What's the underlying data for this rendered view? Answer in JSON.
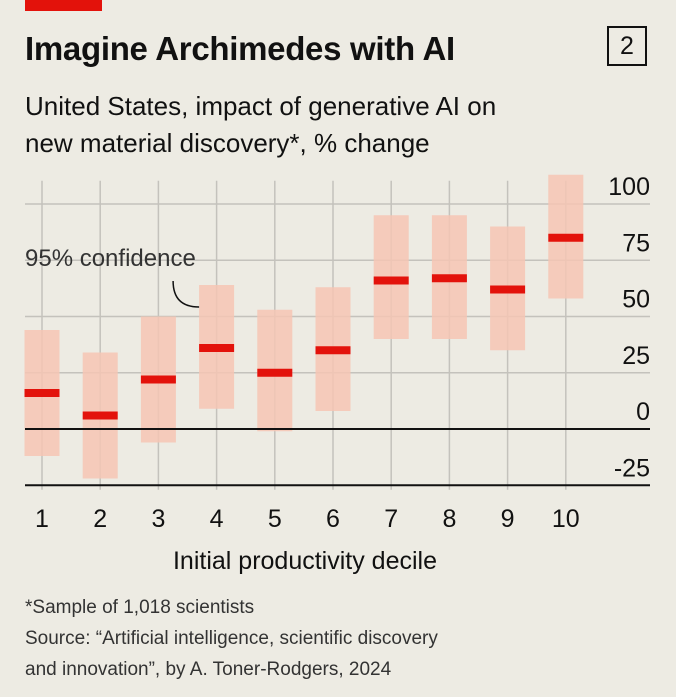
{
  "header": {
    "title": "Imagine Archimedes with AI",
    "chart_number": "2",
    "subtitle_line1": "United States, impact of generative AI on",
    "subtitle_line2": "new material discovery*, % change"
  },
  "colors": {
    "background": "#edebe3",
    "accent": "#e3120b",
    "interval_fill": "#f6c6b4",
    "estimate": "#e3120b",
    "grid": "#c4c2bc",
    "text": "#111111"
  },
  "chart_data": {
    "type": "errorbar",
    "xlabel": "Initial productivity decile",
    "ylabel": "",
    "categories": [
      "1",
      "2",
      "3",
      "4",
      "5",
      "6",
      "7",
      "8",
      "9",
      "10"
    ],
    "values": [
      16,
      6,
      22,
      36,
      25,
      35,
      66,
      67,
      62,
      85
    ],
    "lower": [
      -12,
      -22,
      -6,
      9,
      -1,
      8,
      40,
      40,
      35,
      58
    ],
    "upper": [
      44,
      34,
      50,
      64,
      53,
      63,
      95,
      95,
      90,
      113
    ],
    "ylim": [
      -27,
      113
    ],
    "yticks": [
      -25,
      0,
      25,
      50,
      75,
      100
    ],
    "ytick_labels": [
      "-25",
      "0",
      "25",
      "50",
      "75",
      "100"
    ],
    "axis_side": "right",
    "grid": true,
    "annotation": {
      "text": "95% confidence",
      "category": "4",
      "points_to": "interval"
    }
  },
  "footnote": {
    "note": "*Sample of 1,018 scientists",
    "source_line1": "Source: “Artificial intelligence, scientific discovery",
    "source_line2": "and innovation”, by A. Toner-Rodgers, 2024"
  }
}
